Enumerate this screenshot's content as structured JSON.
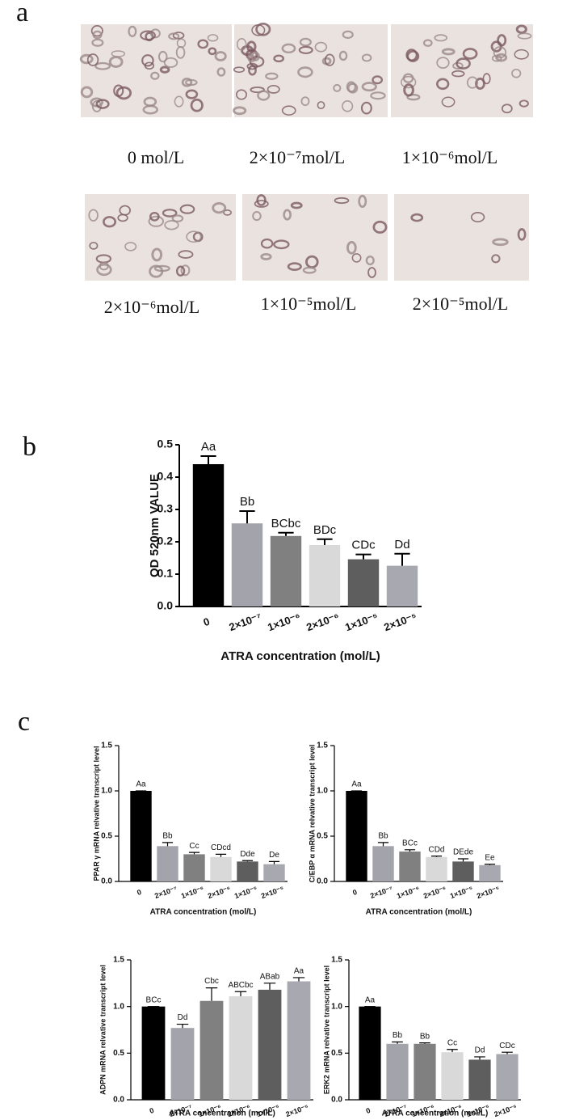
{
  "panels": {
    "a": "a",
    "b": "b",
    "c": "c"
  },
  "captions": [
    "0 mol/L",
    "2×10⁻⁷mol/L",
    "1×10⁻⁶mol/L",
    "2×10⁻⁶mol/L",
    "1×10⁻⁵mol/L",
    "2×10⁻⁵mol/L"
  ],
  "chart_data": [
    {
      "type": "bar",
      "y_label": "OD 520nm VALUE",
      "x_label": "ATRA concentration (mol/L)",
      "categories": [
        "0",
        "2×10⁻⁷",
        "1×10⁻⁶",
        "2×10⁻⁶",
        "1×10⁻⁵",
        "2×10⁻⁵"
      ],
      "values": [
        0.44,
        0.257,
        0.218,
        0.19,
        0.146,
        0.126
      ],
      "errors": [
        0.025,
        0.038,
        0.01,
        0.018,
        0.015,
        0.037
      ],
      "annotations": [
        "Aa",
        "Bb",
        "BCbc",
        "BDc",
        "CDc",
        "Dd"
      ],
      "colors": [
        "#000000",
        "#a3a3ab",
        "#808080",
        "#d9d9d9",
        "#5e5e5e",
        "#a8a8b0"
      ],
      "ylim": [
        0,
        0.5
      ],
      "yticks": [
        {
          "value": 0,
          "label": "0.0"
        },
        0.1,
        0.2,
        0.3,
        0.4,
        0.5
      ]
    },
    {
      "type": "bar",
      "y_label": "PPAR γ mRNA relvative transcript level",
      "x_label": "ATRA concentration (mol/L)",
      "categories": [
        "0",
        "2×10⁻⁷",
        "1×10⁻⁶",
        "2×10⁻⁶",
        "1×10⁻⁵",
        "2×10⁻⁵"
      ],
      "values": [
        1.0,
        0.39,
        0.3,
        0.27,
        0.22,
        0.19
      ],
      "errors": [
        0,
        0.04,
        0.02,
        0.03,
        0.01,
        0.03
      ],
      "annotations": [
        "Aa",
        "Bb",
        "Cc",
        "CDcd",
        "Dde",
        "De"
      ],
      "colors": [
        "#000000",
        "#a3a3ab",
        "#808080",
        "#d9d9d9",
        "#5e5e5e",
        "#a8a8b0"
      ],
      "ylim": [
        0,
        1.5
      ],
      "yticks": [
        {
          "value": 0,
          "label": "0.0"
        },
        0.5,
        {
          "value": 1,
          "label": "1.0"
        },
        1.5
      ]
    },
    {
      "type": "bar",
      "y_label": "C/EBP α mRNA relvative transcript level",
      "x_label": "ATRA concentration (mol/L)",
      "categories": [
        "0",
        "2×10⁻⁷",
        "1×10⁻⁶",
        "2×10⁻⁶",
        "1×10⁻⁵",
        "2×10⁻⁵"
      ],
      "values": [
        1.0,
        0.39,
        0.33,
        0.27,
        0.22,
        0.18
      ],
      "errors": [
        0,
        0.04,
        0.02,
        0.01,
        0.03,
        0.01
      ],
      "annotations": [
        "Aa",
        "Bb",
        "BCc",
        "CDd",
        "DEde",
        "Ee"
      ],
      "colors": [
        "#000000",
        "#a3a3ab",
        "#808080",
        "#d9d9d9",
        "#5e5e5e",
        "#a8a8b0"
      ],
      "ylim": [
        0,
        1.5
      ],
      "yticks": [
        {
          "value": 0,
          "label": "0.0"
        },
        0.5,
        {
          "value": 1,
          "label": "1.0"
        },
        1.5
      ]
    },
    {
      "type": "bar",
      "y_label": "ADPN mRNA relvative transcript level",
      "x_label": "ATRA concentration (mol/L)",
      "categories": [
        "0",
        "2×10⁻⁷",
        "1×10⁻⁶",
        "2×10⁻⁶",
        "1×10⁻⁵",
        "2×10⁻⁵"
      ],
      "values": [
        1.0,
        0.77,
        1.06,
        1.11,
        1.18,
        1.27
      ],
      "errors": [
        0,
        0.04,
        0.14,
        0.05,
        0.07,
        0.04
      ],
      "annotations": [
        "BCc",
        "Dd",
        "Cbc",
        "ABCbc",
        "ABab",
        "Aa"
      ],
      "colors": [
        "#000000",
        "#a3a3ab",
        "#808080",
        "#d9d9d9",
        "#5e5e5e",
        "#a8a8b0"
      ],
      "ylim": [
        0,
        1.5
      ],
      "yticks": [
        {
          "value": 0,
          "label": "0.0"
        },
        0.5,
        {
          "value": 1,
          "label": "1.0"
        },
        1.5
      ]
    },
    {
      "type": "bar",
      "y_label": "ERK2 mRNA relvative transcript level",
      "x_label": "ATRA concentration (mol/L)",
      "categories": [
        "0",
        "2×10⁻⁷",
        "1×10⁻⁶",
        "2×10⁻⁶",
        "1×10⁻⁵",
        "2×10⁻⁵"
      ],
      "values": [
        1.0,
        0.6,
        0.6,
        0.51,
        0.43,
        0.49
      ],
      "errors": [
        0,
        0.02,
        0.01,
        0.03,
        0.03,
        0.02
      ],
      "annotations": [
        "Aa",
        "Bb",
        "Bb",
        "Cc",
        "Dd",
        "CDc"
      ],
      "colors": [
        "#000000",
        "#a3a3ab",
        "#808080",
        "#d9d9d9",
        "#5e5e5e",
        "#a8a8b0"
      ],
      "ylim": [
        0,
        1.5
      ],
      "yticks": [
        {
          "value": 0,
          "label": "0.0"
        },
        0.5,
        {
          "value": 1,
          "label": "1.0"
        },
        1.5
      ]
    }
  ]
}
